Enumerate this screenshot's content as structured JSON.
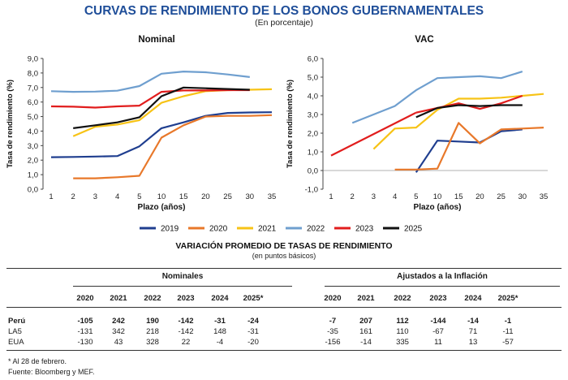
{
  "header": {
    "title": "CURVAS DE RENDIMIENTO DE LOS BONOS GUBERNAMENTALES",
    "subtitle": "(En porcentaje)"
  },
  "chart_data": [
    {
      "type": "line",
      "title": "Nominal",
      "xlabel": "Plazo (años)",
      "ylabel": "Tasa de rendimiento (%)",
      "categories": [
        "1",
        "2",
        "3",
        "4",
        "5",
        "10",
        "15",
        "20",
        "25",
        "30",
        "35"
      ],
      "ylim": [
        0,
        9
      ],
      "yticks": [
        "0,0",
        "1,0",
        "2,0",
        "3,0",
        "4,0",
        "5,0",
        "6,0",
        "7,0",
        "8,0",
        "9,0"
      ],
      "grid": false,
      "series": [
        {
          "name": "2019",
          "values": [
            2.2,
            2.22,
            2.25,
            2.28,
            2.95,
            4.2,
            4.6,
            5.05,
            5.25,
            5.28,
            5.3
          ]
        },
        {
          "name": "2020",
          "values": [
            null,
            0.75,
            0.75,
            0.82,
            0.92,
            3.55,
            4.4,
            5.0,
            5.05,
            5.05,
            5.1
          ]
        },
        {
          "name": "2021",
          "values": [
            null,
            3.65,
            4.3,
            4.45,
            4.75,
            5.95,
            6.4,
            6.75,
            6.82,
            6.85,
            6.88
          ]
        },
        {
          "name": "2022",
          "values": [
            6.75,
            6.7,
            6.72,
            6.78,
            7.1,
            7.95,
            8.1,
            8.05,
            7.9,
            7.72,
            null
          ]
        },
        {
          "name": "2023",
          "values": [
            5.7,
            5.68,
            5.62,
            5.7,
            5.75,
            6.7,
            6.8,
            6.8,
            6.82,
            6.82,
            null
          ]
        },
        {
          "name": "2025",
          "values": [
            null,
            4.2,
            4.4,
            4.6,
            4.95,
            6.4,
            7.0,
            6.95,
            6.9,
            6.85,
            null
          ]
        }
      ]
    },
    {
      "type": "line",
      "title": "VAC",
      "xlabel": "Plazo (años)",
      "ylabel": "Tasa de rendimiento (%)",
      "categories": [
        "1",
        "2",
        "3",
        "4",
        "5",
        "10",
        "15",
        "20",
        "25",
        "30",
        "35"
      ],
      "ylim": [
        -1,
        6
      ],
      "yticks": [
        "-1,0",
        "0,0",
        "1,0",
        "2,0",
        "3,0",
        "4,0",
        "5,0",
        "6,0"
      ],
      "grid": false,
      "series": [
        {
          "name": "2019",
          "values": [
            null,
            null,
            null,
            null,
            -0.1,
            1.6,
            1.55,
            1.5,
            2.1,
            2.2,
            null
          ]
        },
        {
          "name": "2020",
          "values": [
            null,
            null,
            null,
            0.05,
            0.05,
            0.1,
            2.55,
            1.45,
            2.2,
            2.25,
            2.3
          ]
        },
        {
          "name": "2021",
          "values": [
            null,
            null,
            1.15,
            2.25,
            2.3,
            3.25,
            3.85,
            3.85,
            3.9,
            4.0,
            4.1
          ]
        },
        {
          "name": "2022",
          "values": [
            null,
            2.55,
            3.0,
            3.45,
            4.3,
            4.95,
            5.0,
            5.05,
            4.95,
            5.3,
            null
          ]
        },
        {
          "name": "2023",
          "values": [
            0.8,
            null,
            null,
            null,
            3.1,
            3.35,
            3.6,
            3.3,
            3.6,
            4.0,
            null
          ]
        },
        {
          "name": "2025",
          "values": [
            null,
            null,
            null,
            null,
            2.85,
            3.35,
            3.5,
            3.45,
            3.5,
            3.5,
            null
          ]
        }
      ]
    }
  ],
  "legend": [
    {
      "label": "2019",
      "color": "#1f3e8f"
    },
    {
      "label": "2020",
      "color": "#e8782a"
    },
    {
      "label": "2021",
      "color": "#f7c316"
    },
    {
      "label": "2022",
      "color": "#6f9fcf"
    },
    {
      "label": "2023",
      "color": "#e11d1d"
    },
    {
      "label": "2025",
      "color": "#111111"
    }
  ],
  "table": {
    "title": "VARIACIÓN PROMEDIO DE TASAS DE RENDIMIENTO",
    "subtitle": "(en puntos básicos)",
    "group_nominal": "Nominales",
    "group_real": "Ajustados a la Inflación",
    "years": [
      "2020",
      "2021",
      "2022",
      "2023",
      "2024",
      "2025*"
    ],
    "rows": [
      {
        "label": "Perú",
        "bold": true,
        "nominal": [
          "-105",
          "242",
          "190",
          "-142",
          "-31",
          "-24"
        ],
        "real": [
          "-7",
          "207",
          "112",
          "-144",
          "-14",
          "-1"
        ]
      },
      {
        "label": "LA5",
        "bold": false,
        "nominal": [
          "-131",
          "342",
          "218",
          "-142",
          "148",
          "-31"
        ],
        "real": [
          "-35",
          "161",
          "110",
          "-67",
          "71",
          "-11"
        ]
      },
      {
        "label": "EUA",
        "bold": false,
        "nominal": [
          "-130",
          "43",
          "328",
          "22",
          "-4",
          "-20"
        ],
        "real": [
          "-156",
          "-14",
          "335",
          "11",
          "13",
          "-57"
        ]
      }
    ]
  },
  "footnotes": [
    "* Al 28 de febrero.",
    "Fuente: Bloomberg y MEF."
  ]
}
